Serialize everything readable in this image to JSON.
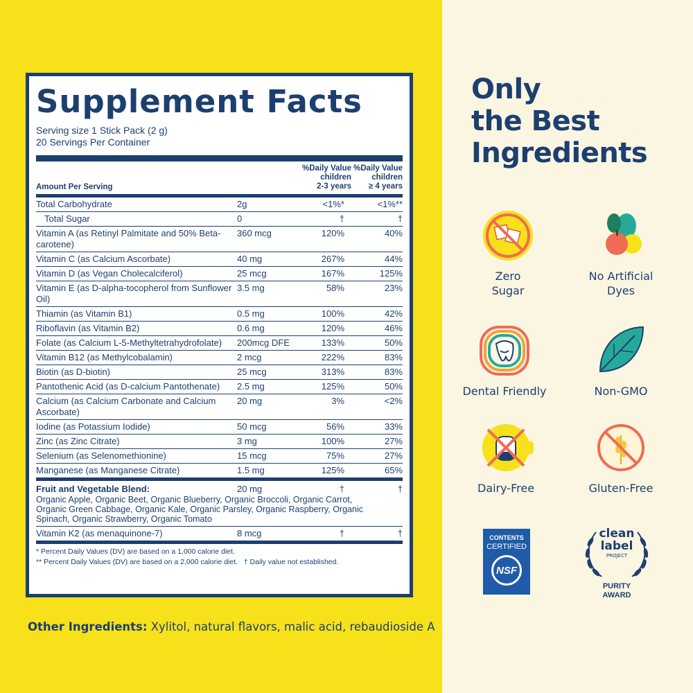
{
  "facts": {
    "title": "Supplement Facts",
    "serving_size": "Serving size 1 Stick Pack (2 g)",
    "servings": "20 Servings Per Container",
    "amount_header": "Amount Per Serving",
    "dv_col1": [
      "%Daily Value",
      "children",
      "2-3 years"
    ],
    "dv_col2": [
      "%Daily Value",
      "children",
      "≥ 4 years"
    ],
    "rows": [
      {
        "name": "Total Carbohydrate",
        "amount": "2g",
        "dv1": "<1%*",
        "dv2": "<1%**"
      },
      {
        "name": "Total Sugar",
        "amount": "0",
        "dv1": "†",
        "dv2": "†",
        "indent": true
      },
      {
        "name": "Vitamin A (as Retinyl Palmitate and 50% Beta-carotene)",
        "amount": "360 mcg",
        "dv1": "120%",
        "dv2": "40%"
      },
      {
        "name": "Vitamin C (as Calcium Ascorbate)",
        "amount": "40 mg",
        "dv1": "267%",
        "dv2": "44%"
      },
      {
        "name": "Vitamin D (as Vegan Cholecalciferol)",
        "amount": "25 mcg",
        "dv1": "167%",
        "dv2": "125%"
      },
      {
        "name": "Vitamin E (as D-alpha-tocopherol from Sunflower Oil)",
        "amount": "3.5 mg",
        "dv1": "58%",
        "dv2": "23%"
      },
      {
        "name": "Thiamin (as Vitamin B1)",
        "amount": "0.5 mg",
        "dv1": "100%",
        "dv2": "42%"
      },
      {
        "name": "Riboflavin (as Vitamin B2)",
        "amount": "0.6 mg",
        "dv1": "120%",
        "dv2": "46%"
      },
      {
        "name": "Folate (as Calcium L-5-Methyltetrahydrofolate)",
        "amount": "200mcg DFE",
        "dv1": "133%",
        "dv2": "50%"
      },
      {
        "name": "Vitamin B12 (as Methylcobalamin)",
        "amount": "2 mcg",
        "dv1": "222%",
        "dv2": "83%"
      },
      {
        "name": "Biotin (as D-biotin)",
        "amount": "25 mcg",
        "dv1": "313%",
        "dv2": "83%"
      },
      {
        "name": "Pantothenic Acid (as D-calcium Pantothenate)",
        "amount": "2.5 mg",
        "dv1": "125%",
        "dv2": "50%"
      },
      {
        "name": "Calcium (as Calcium Carbonate and Calcium Ascorbate)",
        "amount": "20 mg",
        "dv1": "3%",
        "dv2": "<2%"
      },
      {
        "name": "Iodine (as Potassium Iodide)",
        "amount": "50 mcg",
        "dv1": "56%",
        "dv2": "33%"
      },
      {
        "name": "Zinc (as Zinc Citrate)",
        "amount": "3 mg",
        "dv1": "100%",
        "dv2": "27%"
      },
      {
        "name": "Selenium (as Selenomethionine)",
        "amount": "15 mcg",
        "dv1": "75%",
        "dv2": "27%"
      },
      {
        "name": "Manganese (as Manganese Citrate)",
        "amount": "1.5 mg",
        "dv1": "125%",
        "dv2": "65%"
      }
    ],
    "blend": {
      "name": "Fruit and Vegetable Blend:",
      "amount": "20 mg",
      "dv1": "†",
      "dv2": "†",
      "contents": "Organic Apple, Organic Beet, Organic Blueberry, Organic Broccoli, Organic Carrot, Organic Green Cabbage, Organic Kale, Organic Parsley, Organic Raspberry, Organic Spinach, Organic Strawberry, Organic Tomato"
    },
    "k2": {
      "name": "Vitamin K2 (as menaquinone-7)",
      "amount": "8 mcg",
      "dv1": "†",
      "dv2": "†"
    },
    "footnote1": "* Percent Daily Values (DV) are based on a 1,000 calorie diet.",
    "footnote2": "** Percent Daily Values (DV) are based on a 2,000 calorie diet.   † Daily value not established."
  },
  "other_ingredients": {
    "label": "Other Ingredients:",
    "text": " Xylitol, natural flavors, malic acid, rebaudioside A"
  },
  "headline": [
    "Only",
    "the Best",
    "Ingredients"
  ],
  "features": [
    {
      "label": [
        "Zero",
        "Sugar"
      ],
      "icon": "no-sugar-icon"
    },
    {
      "label": [
        "No Artificial",
        "Dyes"
      ],
      "icon": "produce-icon"
    },
    {
      "label": [
        "Dental Friendly"
      ],
      "icon": "tooth-icon"
    },
    {
      "label": [
        "Non-GMO"
      ],
      "icon": "leaf-icon"
    },
    {
      "label": [
        "Dairy-Free"
      ],
      "icon": "no-dairy-icon"
    },
    {
      "label": [
        "Gluten-Free"
      ],
      "icon": "no-gluten-icon"
    }
  ],
  "badges": {
    "nsf": {
      "line1": "CONTENTS",
      "line2": "CERTIFIED",
      "mark": "NSF"
    },
    "clean_label": {
      "line1": "clean",
      "line2": "label",
      "line3": "PROJECT",
      "line4": "PURITY",
      "line5": "AWARD"
    }
  },
  "colors": {
    "navy": "#1d3f70",
    "yellow": "#f6e11b",
    "cream": "#fbf6e1",
    "teal": "#27a99a",
    "coral": "#ef6b55",
    "nsf_blue": "#1f5ba8"
  }
}
